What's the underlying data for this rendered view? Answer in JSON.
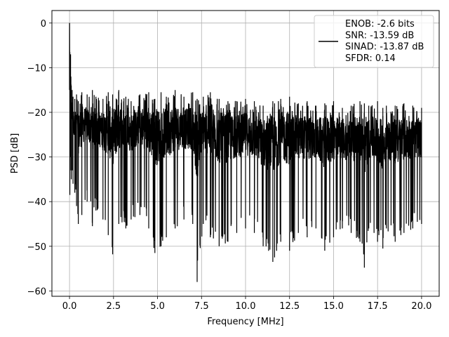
{
  "chart_data": {
    "type": "line",
    "title": "",
    "xlabel": "Frequency [MHz]",
    "ylabel": "PSD [dB]",
    "xlim": [
      -1.0,
      21.0
    ],
    "ylim": [
      -61.2,
      2.8
    ],
    "grid": true,
    "legend_placement": "upper-right",
    "x_ticks": [
      0.0,
      2.5,
      5.0,
      7.5,
      10.0,
      12.5,
      15.0,
      17.5,
      20.0
    ],
    "x_tick_labels": [
      "0.0",
      "2.5",
      "5.0",
      "7.5",
      "10.0",
      "12.5",
      "15.0",
      "17.5",
      "20.0"
    ],
    "y_ticks": [
      0,
      -10,
      -20,
      -30,
      -40,
      -50,
      -60
    ],
    "y_tick_labels": [
      "0",
      "−10",
      "−20",
      "−30",
      "−40",
      "−50",
      "−60"
    ],
    "series": [
      {
        "legend_lines": [
          "ENOB: -2.6 bits",
          "SNR: -13.59 dB",
          "SINAD: -13.87 dB",
          "SFDR: 0.14"
        ],
        "color": "#000000",
        "x": [
          0.0,
          0.02,
          0.04,
          0.06,
          0.08,
          0.1,
          0.15,
          0.2,
          0.3,
          0.4,
          0.5,
          0.7,
          1.0,
          1.3,
          1.5,
          1.9,
          2.2,
          2.45,
          2.8,
          3.2,
          3.5,
          4.0,
          4.5,
          4.85,
          5.2,
          5.5,
          6.0,
          6.5,
          7.0,
          7.25,
          7.6,
          8.0,
          8.5,
          9.0,
          9.5,
          10.0,
          10.5,
          11.0,
          11.55,
          11.65,
          12.0,
          12.5,
          13.0,
          13.5,
          14.0,
          14.5,
          15.0,
          15.5,
          16.0,
          16.5,
          16.75,
          17.0,
          17.5,
          17.8,
          18.0,
          18.5,
          19.0,
          19.5,
          20.0
        ],
        "peak_db": [
          0.0,
          -6.5,
          -10.0,
          -7.0,
          -12.0,
          -14.0,
          -15.0,
          -16.5,
          -17.0,
          -16.0,
          -17.5,
          -15.5,
          -16.0,
          -15.0,
          -16.5,
          -17.0,
          -15.5,
          -16.0,
          -15.0,
          -16.5,
          -17.5,
          -16.0,
          -15.5,
          -17.0,
          -15.5,
          -16.5,
          -15.0,
          -16.5,
          -15.5,
          -17.0,
          -16.5,
          -15.5,
          -17.0,
          -17.5,
          -17.5,
          -17.0,
          -17.5,
          -18.5,
          -17.5,
          -18.0,
          -17.0,
          -16.5,
          -18.0,
          -17.5,
          -18.5,
          -18.0,
          -17.5,
          -19.0,
          -18.5,
          -17.5,
          -18.0,
          -18.5,
          -17.5,
          -19.0,
          -18.5,
          -18.5,
          -18.0,
          -18.5,
          -19.0
        ],
        "trough_db": [
          -15.0,
          -38.5,
          -33.0,
          -30.0,
          -27.0,
          -35.0,
          -33.0,
          -36.0,
          -38.0,
          -41.0,
          -45.0,
          -43.0,
          -40.0,
          -45.5,
          -42.0,
          -44.0,
          -47.5,
          -51.8,
          -45.0,
          -46.0,
          -44.0,
          -43.0,
          -46.0,
          -51.5,
          -50.0,
          -48.0,
          -46.0,
          -44.0,
          -45.0,
          -58.0,
          -45.0,
          -48.0,
          -50.0,
          -49.0,
          -47.0,
          -46.0,
          -47.0,
          -50.0,
          -53.5,
          -52.5,
          -49.0,
          -51.0,
          -47.0,
          -48.0,
          -46.0,
          -51.0,
          -48.0,
          -46.0,
          -47.0,
          -49.0,
          -54.8,
          -46.0,
          -49.0,
          -50.5,
          -46.0,
          -49.0,
          -47.0,
          -46.0,
          -45.0
        ]
      }
    ]
  }
}
